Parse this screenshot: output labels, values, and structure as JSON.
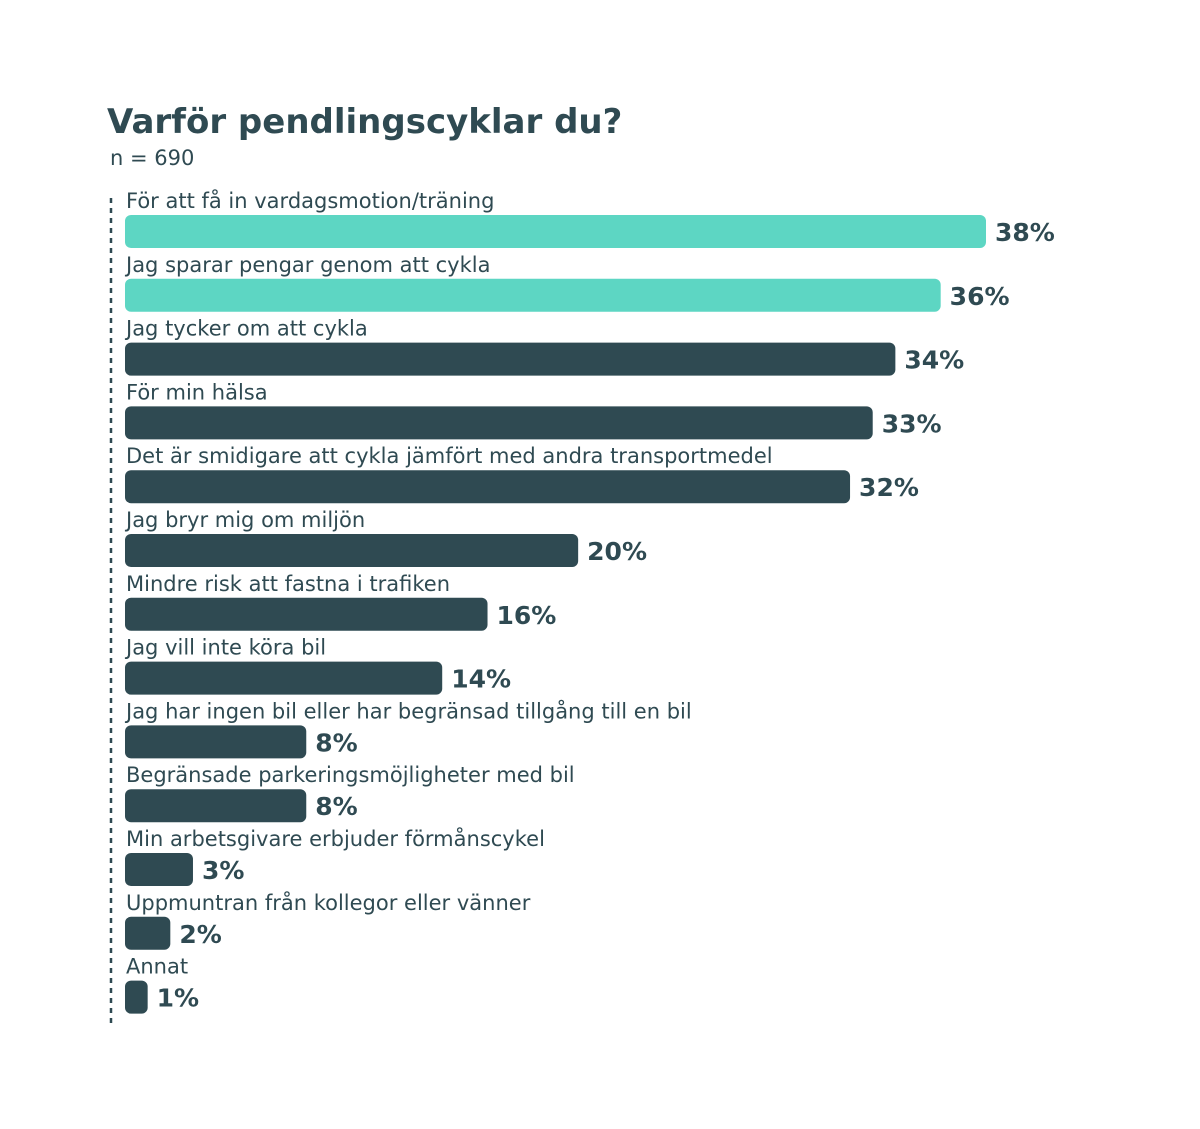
{
  "chart_data": {
    "type": "bar",
    "orientation": "horizontal",
    "title": "Varför pendlingscyklar du?",
    "subtitle": "n = 690",
    "categories": [
      "För att få in vardagsmotion/träning",
      "Jag sparar pengar genom att cykla",
      "Jag tycker om att cykla",
      "För min hälsa",
      "Det är smidigare att cykla jämfört med andra transportmedel",
      "Jag bryr mig om miljön",
      "Mindre risk att fastna i trafiken",
      "Jag vill inte köra bil",
      "Jag har ingen bil eller har begränsad tillgång till en bil",
      "Begränsade parkeringsmöjligheter med bil",
      "Min arbetsgivare erbjuder förmånscykel",
      "Uppmuntran från kollegor eller vänner",
      "Annat"
    ],
    "values": [
      38,
      36,
      34,
      33,
      32,
      20,
      16,
      14,
      8,
      8,
      3,
      2,
      1
    ],
    "value_labels": [
      "38%",
      "36%",
      "34%",
      "33%",
      "32%",
      "20%",
      "16%",
      "14%",
      "8%",
      "8%",
      "3%",
      "2%",
      "1%"
    ],
    "xlim": [
      0,
      38
    ],
    "grid": false,
    "colors": {
      "highlight": "#5dd6c3",
      "default": "#2f4a52",
      "text": "#2f4a52",
      "axis": "#2f4a52"
    },
    "highlight_count": 2
  }
}
